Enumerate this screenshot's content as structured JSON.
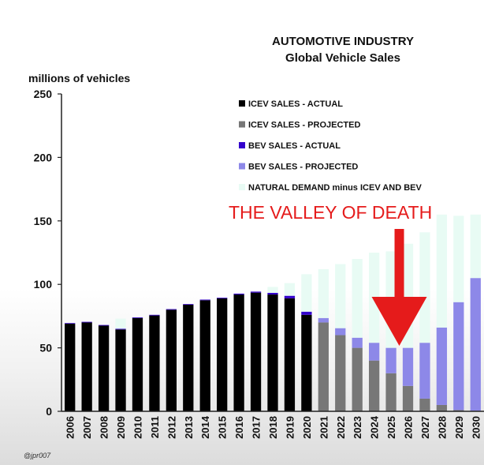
{
  "chart_data": {
    "type": "bar",
    "title": "AUTOMOTIVE INDUSTRY",
    "subtitle": "Global Vehicle Sales",
    "ylabel": "millions of vehicles",
    "xlabel": "",
    "ylim": [
      0,
      250
    ],
    "yticks": [
      0,
      50,
      100,
      150,
      200,
      250
    ],
    "stacked": true,
    "categories": [
      "2006",
      "2007",
      "2008",
      "2009",
      "2010",
      "2011",
      "2012",
      "2013",
      "2014",
      "2015",
      "2016",
      "2017",
      "2018",
      "2019",
      "2020",
      "2021",
      "2022",
      "2023",
      "2024",
      "2025",
      "2026",
      "2027",
      "2028",
      "2029",
      "2030"
    ],
    "series": [
      {
        "name": "ICEV SALES - ACTUAL",
        "color": "#000000",
        "values": [
          69,
          70,
          67.5,
          64.5,
          73.5,
          75.5,
          80,
          84,
          87.5,
          89,
          92,
          93.5,
          92,
          89,
          76,
          0,
          0,
          0,
          0,
          0,
          0,
          0,
          0,
          0,
          0
        ]
      },
      {
        "name": "ICEV SALES - PROJECTED",
        "color": "#777777",
        "values": [
          0,
          0,
          0,
          0,
          0,
          0,
          0,
          0,
          0,
          0,
          0,
          0,
          0,
          0,
          0,
          70,
          60,
          50,
          40,
          30,
          20,
          10,
          5,
          1,
          0.5
        ]
      },
      {
        "name": "BEV SALES - ACTUAL",
        "color": "#3300cc",
        "values": [
          0.5,
          0.5,
          0.5,
          0.5,
          0.5,
          0.5,
          0.5,
          0.5,
          0.5,
          0.5,
          0.7,
          0.8,
          1.3,
          2,
          2.5,
          0,
          0,
          0,
          0,
          0,
          0,
          0,
          0,
          0,
          0
        ]
      },
      {
        "name": "BEV SALES - PROJECTED",
        "color": "#8d88e8",
        "values": [
          0,
          0,
          0,
          0,
          0,
          0,
          0,
          0,
          0,
          0,
          0,
          0,
          0,
          0,
          0,
          3.5,
          5.5,
          8,
          14,
          20,
          30,
          44,
          61,
          85,
          104.5
        ]
      },
      {
        "name": "NATURAL DEMAND minus ICEV AND BEV",
        "color": "#e8fbf4",
        "values": [
          0,
          0,
          0,
          8,
          0,
          0,
          0,
          0,
          0,
          0,
          0,
          0,
          4.7,
          10,
          29.5,
          38.5,
          50.5,
          62,
          71,
          76,
          82,
          87,
          89,
          68,
          50
        ]
      }
    ],
    "grid": false,
    "legend_position": "top-right",
    "annotation": {
      "text": "THE VALLEY OF DEATH",
      "points_to": "2026",
      "color": "#e51b1b"
    }
  },
  "credit": "@jpr007"
}
